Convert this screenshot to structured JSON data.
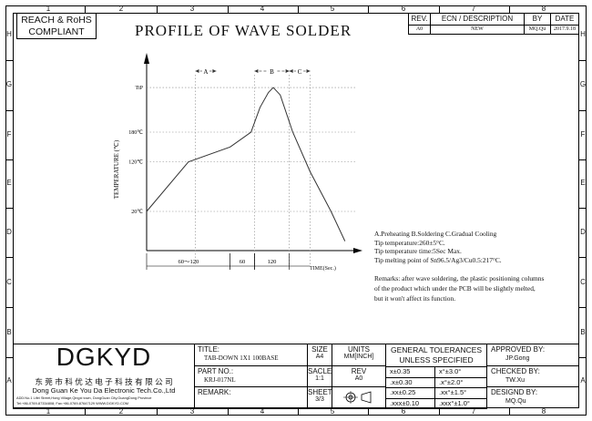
{
  "frame": {
    "columns": [
      "1",
      "2",
      "3",
      "4",
      "5",
      "6",
      "7",
      "8"
    ],
    "rows": [
      "H",
      "G",
      "F",
      "E",
      "D",
      "C",
      "B",
      "A"
    ]
  },
  "compliance": {
    "line1": "REACH & RoHS",
    "line2": "COMPLIANT"
  },
  "page_title": "PROFILE OF WAVE SOLDER",
  "revision_table": {
    "headers": [
      "REV.",
      "ECN / DESCRIPTION",
      "BY",
      "DATE"
    ],
    "row": [
      "A0",
      "NEW",
      "MQ.Qu",
      "2017.9.18"
    ]
  },
  "chart_data": {
    "type": "line",
    "ylabel": "TEMPERATURE (℃)",
    "xlabel": "TIME(Sec.)",
    "y_ticks": [
      "TiP",
      "180℃",
      "120℃",
      "20℃"
    ],
    "points": [
      [
        0,
        20
      ],
      [
        60,
        120
      ],
      [
        120,
        150
      ],
      [
        150,
        180
      ],
      [
        163,
        230
      ],
      [
        175,
        260
      ],
      [
        182,
        270
      ],
      [
        192,
        255
      ],
      [
        210,
        180
      ],
      [
        235,
        100
      ],
      [
        265,
        20
      ],
      [
        285,
        -40
      ]
    ],
    "phases": [
      "A",
      "B",
      "C"
    ],
    "time_segments": [
      "60～120",
      "60",
      "120"
    ]
  },
  "notes": {
    "lines": [
      "A.Preheating  B.Soldering  C.Gradual Cooling",
      "Tip temperature:260±5°C.",
      "Tip temperature time:5Sec Max.",
      "Tip melting point of Sn96.5/Ag3/Cu0.5:217°C."
    ],
    "remarks": [
      "Remarks: after wave soldering, the plastic positioning columns",
      "of the product  which under the PCB will be slightly melted,",
      "but it won't affect its function."
    ]
  },
  "title_block": {
    "company_logo": "DGKYD",
    "company_cn": "东 莞 市 科 优 达 电 子 科 技 有 限 公 司",
    "company_en": "Dong Guan Ke You Da Electronic Tech.Co.,Ltd",
    "address": "ADD:No.1 Lifei Street,Hong Village,Qingxi town, DongGuan City,GuangDong Province",
    "contact": "Tel:+86-0769-87334808; Fax:+86-0769-87647129  WWW.DGKYD.COM",
    "title_label": "TITLE:",
    "title_value": "TAB-DOWN 1X1 100BASE",
    "part_label": "PART NO.:",
    "part_value": "KRJ-017NL",
    "remark_label": "REMARK:",
    "size_label": "SIZE",
    "size_value": "A4",
    "units_label": "UNITS",
    "units_value": "MM[INCH]",
    "scale_label": "SACLE",
    "scale_value": "1:1",
    "rev_label": "REV",
    "rev_value": "A0",
    "sheet_label": "SHEET",
    "sheet_value": "3/3",
    "tolerances_title": "GENERAL TOLERANCES",
    "tolerances_sub": "UNLESS SPECIFIED",
    "tolerances": [
      [
        "x±0.35",
        "x°±3.0°"
      ],
      [
        ".x±0.30",
        ".x°±2.0°"
      ],
      [
        ".xx±0.25",
        ".xx°±1.5°"
      ],
      [
        ".xxx±0.10",
        ".xxx°±1.0°"
      ]
    ],
    "approved_label": "APPROVED BY:",
    "approved_value": "JP.Gong",
    "checked_label": "CHECKED BY:",
    "checked_value": "TW.Xu",
    "designed_label": "DESIGND BY:",
    "designed_value": "MQ.Qu"
  }
}
